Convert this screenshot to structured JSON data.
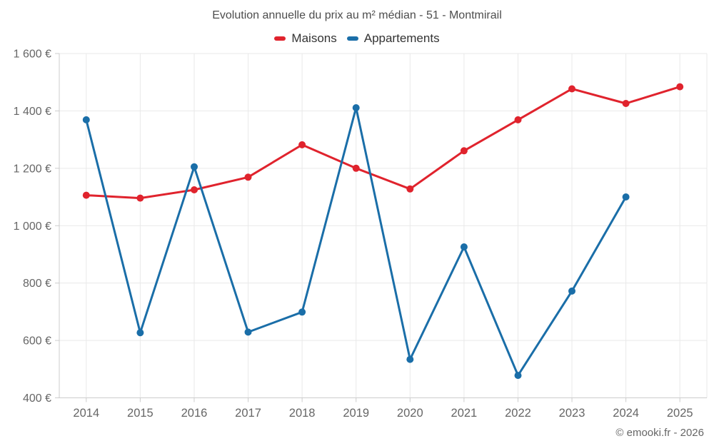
{
  "header": {
    "title": "Evolution annuelle du prix au m² médian - 51 - Montmirail"
  },
  "footer": {
    "credit": "© emooki.fr - 2026"
  },
  "colors": {
    "maisons": "#e0232d",
    "appartements": "#1a6ea8",
    "grid": "#e9e9e9",
    "axis": "#cccccc",
    "title_text": "#4d4d4d",
    "axis_text": "#666666",
    "legend_text": "#333333"
  },
  "chart_data": {
    "type": "line",
    "title": "Evolution annuelle du prix au m² médian - 51 - Montmirail",
    "categories": [
      "2014",
      "2015",
      "2016",
      "2017",
      "2018",
      "2019",
      "2020",
      "2021",
      "2022",
      "2023",
      "2024",
      "2025"
    ],
    "series": [
      {
        "name": "Maisons",
        "color": "#e0232d",
        "values": [
          1106,
          1096,
          1125,
          1169,
          1282,
          1200,
          1128,
          1261,
          1369,
          1477,
          1426,
          1484
        ]
      },
      {
        "name": "Appartements",
        "color": "#1a6ea8",
        "values": [
          1369,
          627,
          1205,
          629,
          699,
          1411,
          534,
          926,
          478,
          772,
          1100,
          null
        ]
      }
    ],
    "ylim": [
      400,
      1600
    ],
    "ytick_step": 200,
    "ytick_labels": [
      "400 €",
      "600 €",
      "800 €",
      "1 000 €",
      "1 200 €",
      "1 400 €",
      "1 600 €"
    ],
    "currency_suffix": "€",
    "grid": true,
    "legend_position": "top",
    "marker": "circle"
  }
}
